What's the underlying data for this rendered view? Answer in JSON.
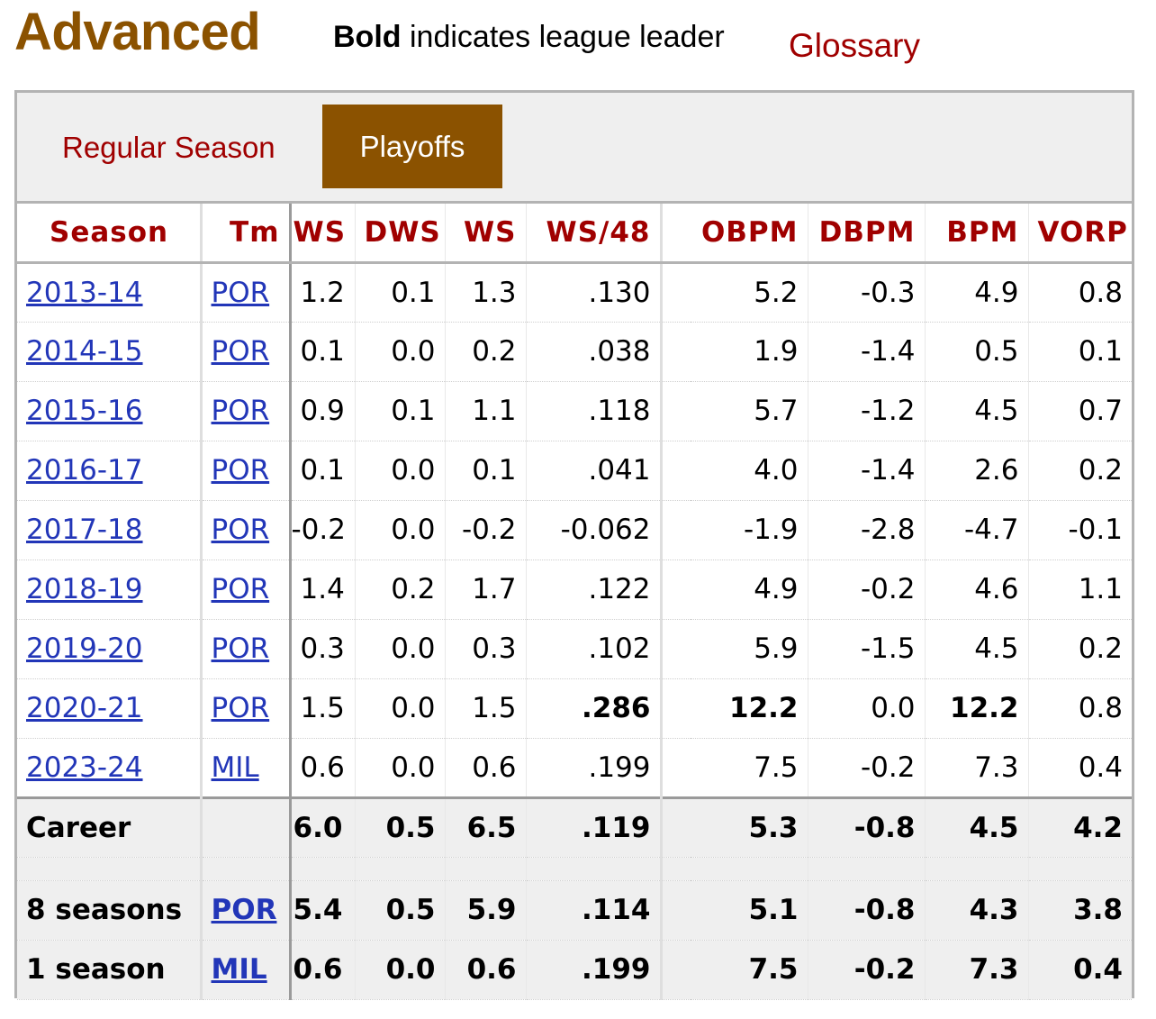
{
  "header": {
    "title": "Advanced",
    "note_bold": "Bold",
    "note_rest": " indicates league leader",
    "glossary": "Glossary"
  },
  "tabs": [
    {
      "label": "Regular Season",
      "active": false
    },
    {
      "label": "Playoffs",
      "active": true
    }
  ],
  "table": {
    "columns": [
      "Season",
      "Tm",
      "WS",
      "DWS",
      "WS",
      "WS/48",
      "",
      "OBPM",
      "DBPM",
      "BPM",
      "VORP"
    ],
    "rows": [
      [
        "2013-14",
        "POR",
        "1.2",
        "0.1",
        "1.3",
        ".130",
        "",
        "5.2",
        "-0.3",
        "4.9",
        "0.8"
      ],
      [
        "2014-15",
        "POR",
        "0.1",
        "0.0",
        "0.2",
        ".038",
        "",
        "1.9",
        "-1.4",
        "0.5",
        "0.1"
      ],
      [
        "2015-16",
        "POR",
        "0.9",
        "0.1",
        "1.1",
        ".118",
        "",
        "5.7",
        "-1.2",
        "4.5",
        "0.7"
      ],
      [
        "2016-17",
        "POR",
        "0.1",
        "0.0",
        "0.1",
        ".041",
        "",
        "4.0",
        "-1.4",
        "2.6",
        "0.2"
      ],
      [
        "2017-18",
        "POR",
        "-0.2",
        "0.0",
        "-0.2",
        "-0.062",
        "",
        "-1.9",
        "-2.8",
        "-4.7",
        "-0.1"
      ],
      [
        "2018-19",
        "POR",
        "1.4",
        "0.2",
        "1.7",
        ".122",
        "",
        "4.9",
        "-0.2",
        "4.6",
        "1.1"
      ],
      [
        "2019-20",
        "POR",
        "0.3",
        "0.0",
        "0.3",
        ".102",
        "",
        "5.9",
        "-1.5",
        "4.5",
        "0.2"
      ],
      [
        "2020-21",
        "POR",
        "1.5",
        "0.0",
        "1.5",
        ".286",
        "",
        "12.2",
        "0.0",
        "12.2",
        "0.8"
      ],
      [
        "2023-24",
        "MIL",
        "0.6",
        "0.0",
        "0.6",
        ".199",
        "",
        "7.5",
        "-0.2",
        "7.3",
        "0.4"
      ]
    ],
    "footer": [
      [
        "Career",
        "",
        "6.0",
        "0.5",
        "6.5",
        ".119",
        "",
        "5.3",
        "-0.8",
        "4.5",
        "4.2"
      ],
      [
        "8 seasons",
        "POR",
        "5.4",
        "0.5",
        "5.9",
        ".114",
        "",
        "5.1",
        "-0.8",
        "4.3",
        "3.8"
      ],
      [
        "1 season",
        "MIL",
        "0.6",
        "0.0",
        "0.6",
        ".199",
        "",
        "7.5",
        "-0.2",
        "7.3",
        "0.4"
      ]
    ]
  }
}
